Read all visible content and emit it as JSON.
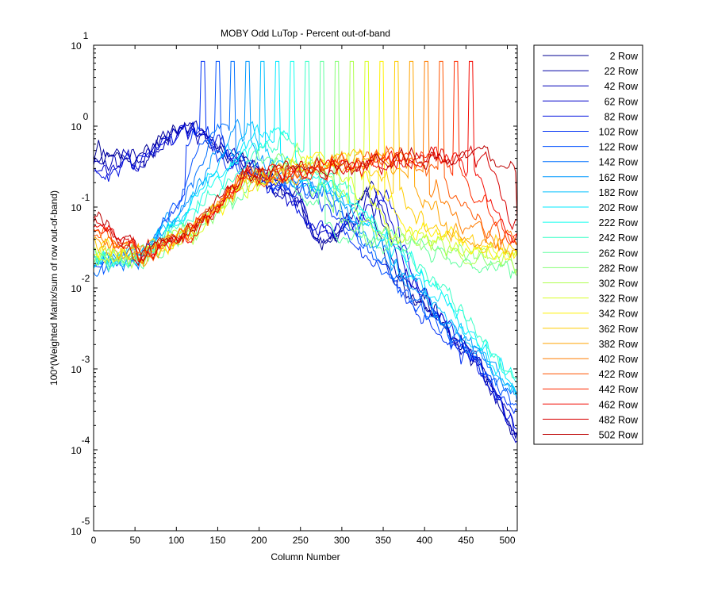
{
  "chart_data": {
    "type": "line",
    "title": "MOBY Odd LuTop - Percent out-of-band",
    "xlabel": "Column Number",
    "ylabel": "100*(Weighted Matrix/sum of row out-of-band)",
    "xlim": [
      0,
      512
    ],
    "ylim_log10": [
      -5,
      1
    ],
    "yscale": "log",
    "grid": false,
    "legend_position": "outside-right",
    "x_ticks": [
      "0",
      "50",
      "100",
      "150",
      "200",
      "250",
      "300",
      "350",
      "400",
      "450",
      "500"
    ],
    "y_ticks": [
      {
        "base": "10",
        "exp": "-5"
      },
      {
        "base": "10",
        "exp": "-4"
      },
      {
        "base": "10",
        "exp": "-3"
      },
      {
        "base": "10",
        "exp": "-2"
      },
      {
        "base": "10",
        "exp": "-1"
      },
      {
        "base": "10",
        "exp": "0"
      },
      {
        "base": "10",
        "exp": "1"
      }
    ],
    "series": [
      {
        "name": "2 Row",
        "row": 2,
        "color": "#000090"
      },
      {
        "name": "22 Row",
        "row": 22,
        "color": "#0000a4"
      },
      {
        "name": "42 Row",
        "row": 42,
        "color": "#0000b8"
      },
      {
        "name": "62 Row",
        "row": 62,
        "color": "#0000cc"
      },
      {
        "name": "82 Row",
        "row": 82,
        "color": "#0010e0"
      },
      {
        "name": "102 Row",
        "row": 102,
        "color": "#0030f4"
      },
      {
        "name": "122 Row",
        "row": 122,
        "color": "#0050ff"
      },
      {
        "name": "142 Row",
        "row": 142,
        "color": "#0070ff"
      },
      {
        "name": "162 Row",
        "row": 162,
        "color": "#0098ff"
      },
      {
        "name": "182 Row",
        "row": 182,
        "color": "#00c0ff"
      },
      {
        "name": "202 Row",
        "row": 202,
        "color": "#00e8ff"
      },
      {
        "name": "222 Row",
        "row": 222,
        "color": "#10ffef"
      },
      {
        "name": "242 Row",
        "row": 242,
        "color": "#38ffc7"
      },
      {
        "name": "262 Row",
        "row": 262,
        "color": "#60ff9f"
      },
      {
        "name": "282 Row",
        "row": 282,
        "color": "#88ff77"
      },
      {
        "name": "302 Row",
        "row": 302,
        "color": "#b0ff4f"
      },
      {
        "name": "322 Row",
        "row": 322,
        "color": "#d8ff27"
      },
      {
        "name": "342 Row",
        "row": 342,
        "color": "#fff000"
      },
      {
        "name": "362 Row",
        "row": 362,
        "color": "#ffcc00"
      },
      {
        "name": "382 Row",
        "row": 382,
        "color": "#ffa400"
      },
      {
        "name": "402 Row",
        "row": 402,
        "color": "#ff7c00"
      },
      {
        "name": "422 Row",
        "row": 422,
        "color": "#ff5400"
      },
      {
        "name": "442 Row",
        "row": 442,
        "color": "#ff2c00"
      },
      {
        "name": "462 Row",
        "row": 462,
        "color": "#f40800"
      },
      {
        "name": "482 Row",
        "row": 482,
        "color": "#d80000"
      },
      {
        "name": "502 Row",
        "row": 502,
        "color": "#bc0000"
      }
    ]
  }
}
